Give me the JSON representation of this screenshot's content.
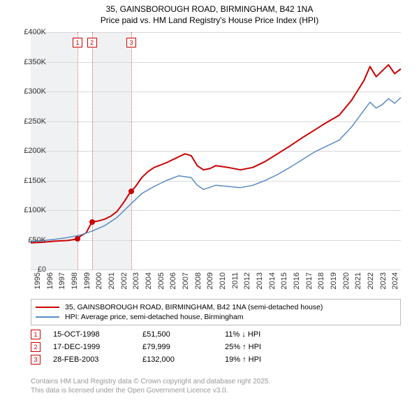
{
  "title": {
    "line1": "35, GAINSBOROUGH ROAD, BIRMINGHAM, B42 1NA",
    "line2": "Price paid vs. HM Land Registry's House Price Index (HPI)"
  },
  "chart": {
    "type": "line",
    "background_color": "#ffffff",
    "shaded_background_color": "#f0f1f3",
    "grid_color": "#d8d8d8",
    "x": {
      "min": 1995.0,
      "max": 2025.0,
      "ticks": [
        1995,
        1996,
        1997,
        1998,
        1999,
        2000,
        2001,
        2002,
        2003,
        2004,
        2005,
        2006,
        2007,
        2008,
        2009,
        2010,
        2011,
        2012,
        2013,
        2014,
        2015,
        2016,
        2017,
        2018,
        2019,
        2020,
        2021,
        2022,
        2023,
        2024
      ],
      "tick_fontsize": 11
    },
    "y": {
      "min": 0,
      "max": 400000,
      "ticks": [
        0,
        50000,
        100000,
        150000,
        200000,
        250000,
        300000,
        350000,
        400000
      ],
      "tick_labels": [
        "£0",
        "£50K",
        "£100K",
        "£150K",
        "£200K",
        "£250K",
        "£300K",
        "£350K",
        "£400K"
      ],
      "tick_fontsize": 11
    },
    "shaded_x_ranges": [
      [
        1995.0,
        1998.79
      ],
      [
        1999.96,
        2003.16
      ]
    ],
    "series": [
      {
        "id": "price_paid",
        "label": "35, GAINSBOROUGH ROAD, BIRMINGHAM, B42 1NA (semi-detached house)",
        "color": "#cc0000",
        "line_width": 2,
        "data": [
          [
            1995.0,
            45000
          ],
          [
            1996.0,
            46000
          ],
          [
            1997.0,
            48000
          ],
          [
            1998.0,
            49000
          ],
          [
            1998.79,
            51500
          ],
          [
            1999.0,
            56000
          ],
          [
            1999.5,
            62000
          ],
          [
            1999.96,
            79999
          ],
          [
            2000.5,
            82000
          ],
          [
            2001.0,
            85000
          ],
          [
            2001.5,
            90000
          ],
          [
            2002.0,
            98000
          ],
          [
            2002.5,
            112000
          ],
          [
            2003.0,
            128000
          ],
          [
            2003.16,
            132000
          ],
          [
            2003.5,
            140000
          ],
          [
            2004.0,
            155000
          ],
          [
            2004.5,
            165000
          ],
          [
            2005.0,
            172000
          ],
          [
            2006.0,
            180000
          ],
          [
            2007.0,
            190000
          ],
          [
            2007.5,
            195000
          ],
          [
            2008.0,
            192000
          ],
          [
            2008.5,
            175000
          ],
          [
            2009.0,
            168000
          ],
          [
            2009.5,
            170000
          ],
          [
            2010.0,
            175000
          ],
          [
            2011.0,
            172000
          ],
          [
            2012.0,
            168000
          ],
          [
            2013.0,
            172000
          ],
          [
            2014.0,
            182000
          ],
          [
            2015.0,
            195000
          ],
          [
            2016.0,
            208000
          ],
          [
            2017.0,
            222000
          ],
          [
            2018.0,
            235000
          ],
          [
            2019.0,
            248000
          ],
          [
            2020.0,
            260000
          ],
          [
            2021.0,
            285000
          ],
          [
            2022.0,
            318000
          ],
          [
            2022.5,
            342000
          ],
          [
            2023.0,
            325000
          ],
          [
            2023.5,
            335000
          ],
          [
            2024.0,
            345000
          ],
          [
            2024.5,
            330000
          ],
          [
            2025.0,
            338000
          ]
        ]
      },
      {
        "id": "hpi",
        "label": "HPI: Average price, semi-detached house, Birmingham",
        "color": "#5a8bc4",
        "line_width": 1.5,
        "data": [
          [
            1995.0,
            48000
          ],
          [
            1996.0,
            49000
          ],
          [
            1997.0,
            51000
          ],
          [
            1998.0,
            54000
          ],
          [
            1999.0,
            58000
          ],
          [
            2000.0,
            65000
          ],
          [
            2001.0,
            74000
          ],
          [
            2002.0,
            88000
          ],
          [
            2003.0,
            108000
          ],
          [
            2004.0,
            128000
          ],
          [
            2005.0,
            140000
          ],
          [
            2006.0,
            150000
          ],
          [
            2007.0,
            158000
          ],
          [
            2008.0,
            155000
          ],
          [
            2008.5,
            142000
          ],
          [
            2009.0,
            135000
          ],
          [
            2010.0,
            142000
          ],
          [
            2011.0,
            140000
          ],
          [
            2012.0,
            138000
          ],
          [
            2013.0,
            142000
          ],
          [
            2014.0,
            150000
          ],
          [
            2015.0,
            160000
          ],
          [
            2016.0,
            172000
          ],
          [
            2017.0,
            185000
          ],
          [
            2018.0,
            198000
          ],
          [
            2019.0,
            208000
          ],
          [
            2020.0,
            218000
          ],
          [
            2021.0,
            240000
          ],
          [
            2022.0,
            268000
          ],
          [
            2022.5,
            282000
          ],
          [
            2023.0,
            272000
          ],
          [
            2023.5,
            278000
          ],
          [
            2024.0,
            288000
          ],
          [
            2024.5,
            280000
          ],
          [
            2025.0,
            290000
          ]
        ]
      }
    ],
    "sale_markers": [
      {
        "num": "1",
        "x": 1998.79,
        "y": 51500
      },
      {
        "num": "2",
        "x": 1999.96,
        "y": 79999
      },
      {
        "num": "3",
        "x": 2003.16,
        "y": 132000
      }
    ],
    "marker_box_color": "#cc0000",
    "marker_line_color": "#cc6666",
    "marker_dot_color": "#cc0000"
  },
  "legend": {
    "border_color": "#bbbbbb",
    "fontsize": 10.5
  },
  "events": [
    {
      "num": "1",
      "date": "15-OCT-1998",
      "price": "£51,500",
      "delta": "11% ↓ HPI"
    },
    {
      "num": "2",
      "date": "17-DEC-1999",
      "price": "£79,999",
      "delta": "25% ↑ HPI"
    },
    {
      "num": "3",
      "date": "28-FEB-2003",
      "price": "£132,000",
      "delta": "19% ↑ HPI"
    }
  ],
  "footer": {
    "line1": "Contains HM Land Registry data © Crown copyright and database right 2025.",
    "line2": "This data is licensed under the Open Government Licence v3.0.",
    "color": "#999999"
  }
}
